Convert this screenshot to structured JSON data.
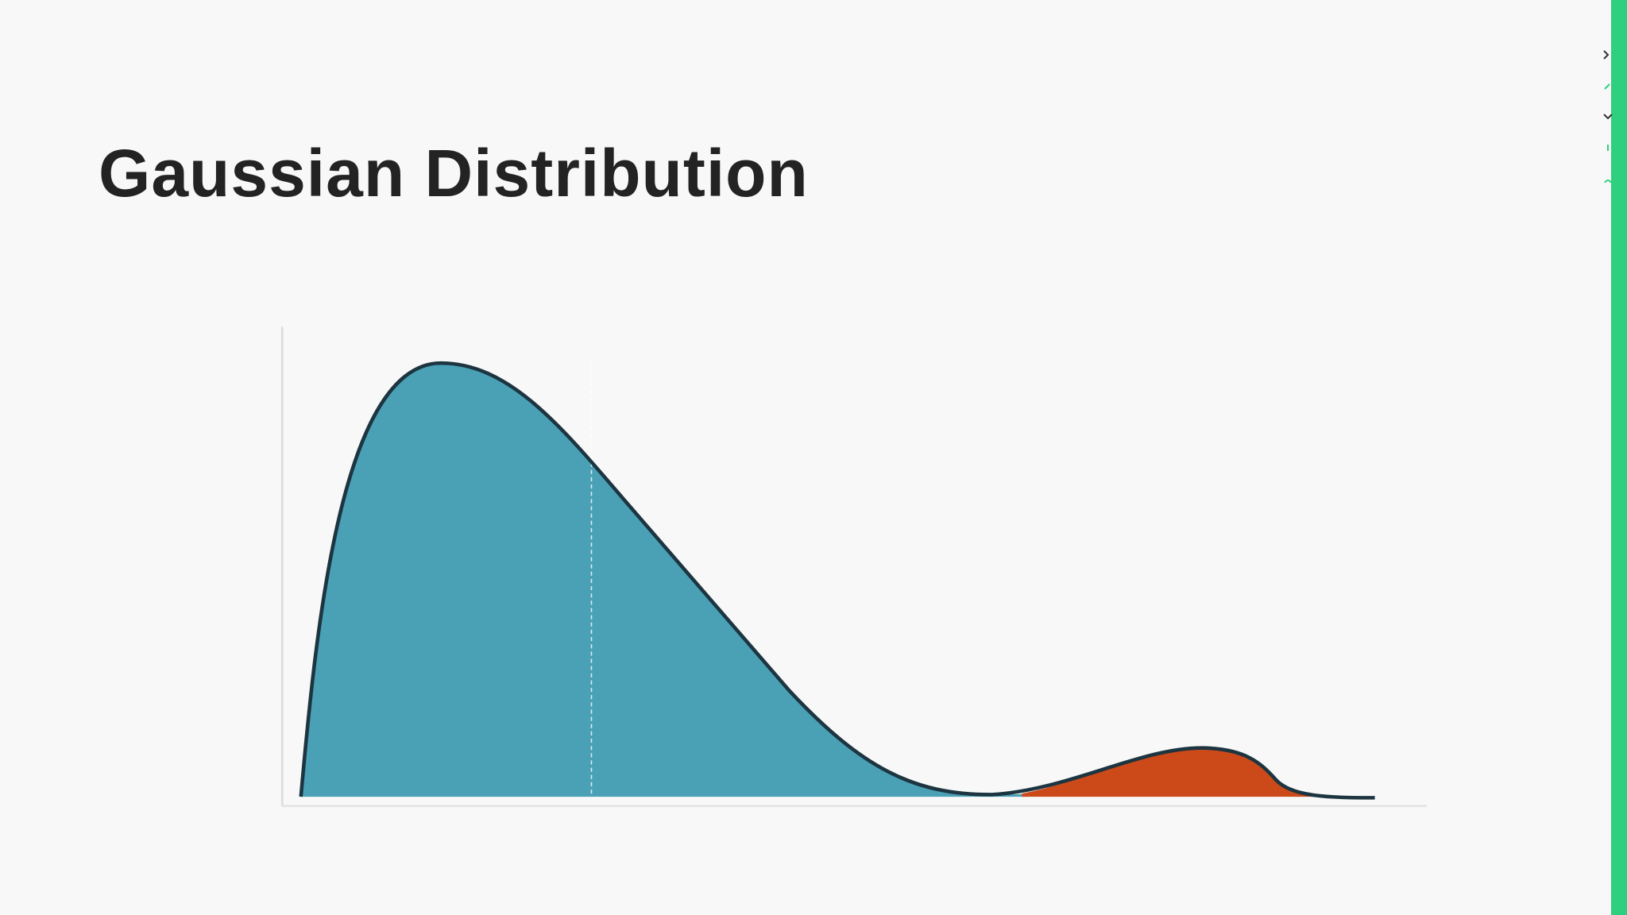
{
  "slide": {
    "title": "Gaussian Distribution"
  }
}
